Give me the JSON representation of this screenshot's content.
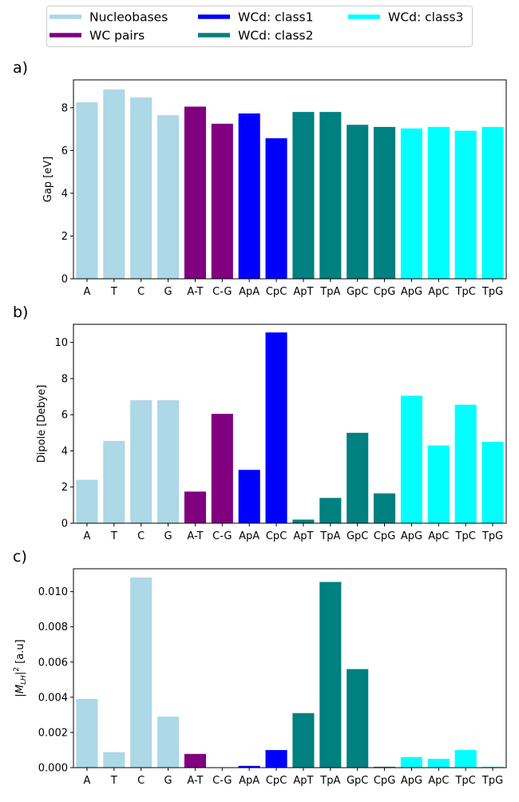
{
  "legend": [
    {
      "label": "Nucleobases",
      "color": "#add8e6"
    },
    {
      "label": "WC pairs",
      "color": "#800080"
    },
    {
      "label": "WCd: class1",
      "color": "#0000ff"
    },
    {
      "label": "WCd: class2",
      "color": "#008080"
    },
    {
      "label": "WCd: class3",
      "color": "#00ffff"
    }
  ],
  "chart_data": [
    {
      "type": "bar",
      "panel": "a)",
      "ylabel": "Gap [eV]",
      "ylim": [
        0,
        9.3
      ],
      "yticks": [
        "0",
        "2",
        "4",
        "6",
        "8"
      ],
      "categories": [
        "A",
        "T",
        "C",
        "G",
        "A-T",
        "C-G",
        "ApA",
        "CpC",
        "ApT",
        "TpA",
        "GpC",
        "CpG",
        "ApG",
        "ApC",
        "TpC",
        "TpG"
      ],
      "groups": [
        0,
        0,
        0,
        0,
        1,
        1,
        2,
        2,
        3,
        3,
        3,
        3,
        4,
        4,
        4,
        4
      ],
      "values": [
        8.25,
        8.85,
        8.48,
        7.65,
        8.05,
        7.25,
        7.73,
        6.57,
        7.8,
        7.8,
        7.2,
        7.1,
        7.03,
        7.1,
        6.92,
        7.1
      ]
    },
    {
      "type": "bar",
      "panel": "b)",
      "ylabel": "Dipole [Debye]",
      "ylim": [
        0,
        11.0
      ],
      "yticks": [
        "0",
        "2",
        "4",
        "6",
        "8",
        "10"
      ],
      "categories": [
        "A",
        "T",
        "C",
        "G",
        "A-T",
        "C-G",
        "ApA",
        "CpC",
        "ApT",
        "TpA",
        "GpC",
        "CpG",
        "ApG",
        "ApC",
        "TpC",
        "TpG"
      ],
      "groups": [
        0,
        0,
        0,
        0,
        1,
        1,
        2,
        2,
        3,
        3,
        3,
        3,
        4,
        4,
        4,
        4
      ],
      "values": [
        2.4,
        4.55,
        6.8,
        6.8,
        1.75,
        6.05,
        2.95,
        10.55,
        0.2,
        1.4,
        5.0,
        1.65,
        7.05,
        4.3,
        6.55,
        4.5
      ]
    },
    {
      "type": "bar",
      "panel": "c)",
      "ylabel_main": "|M",
      "ylabel_sub": "LH",
      "ylabel_rest": "|",
      "ylabel_sup": "2",
      "ylabel_unit": " [a.u]",
      "ylim": [
        0,
        0.0113
      ],
      "yticks": [
        "0.000",
        "0.002",
        "0.004",
        "0.006",
        "0.008",
        "0.010"
      ],
      "categories": [
        "A",
        "T",
        "C",
        "G",
        "A-T",
        "C-G",
        "ApA",
        "CpC",
        "ApT",
        "TpA",
        "GpC",
        "CpG",
        "ApG",
        "ApC",
        "TpC",
        "TpG"
      ],
      "groups": [
        0,
        0,
        0,
        0,
        1,
        1,
        2,
        2,
        3,
        3,
        3,
        3,
        4,
        4,
        4,
        4
      ],
      "values": [
        0.0039,
        0.00088,
        0.0108,
        0.0029,
        0.00078,
        0.0,
        0.0001,
        0.001,
        0.0031,
        0.01055,
        0.0056,
        5e-05,
        0.0006,
        0.0005,
        0.001,
        5e-05
      ]
    }
  ]
}
